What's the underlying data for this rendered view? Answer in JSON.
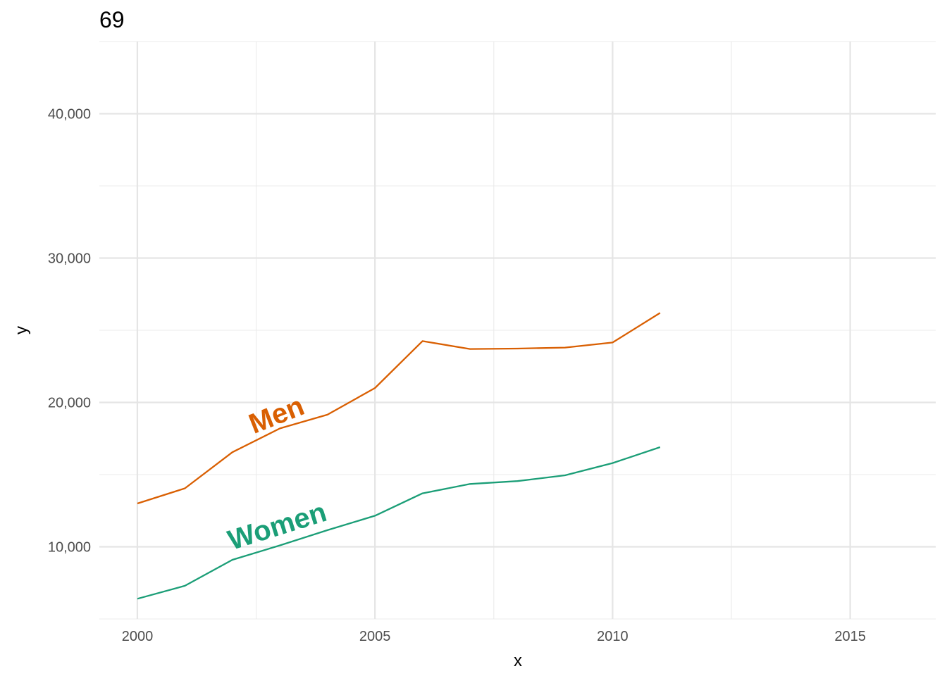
{
  "chart_data": {
    "type": "line",
    "title": "69",
    "xlabel": "x",
    "ylabel": "y",
    "xlim": [
      1999.2,
      2016.8
    ],
    "ylim": [
      5000,
      45000
    ],
    "x_ticks": [
      2000,
      2005,
      2010,
      2015
    ],
    "x_tick_labels": [
      "2000",
      "2005",
      "2010",
      "2015"
    ],
    "x_minor_ticks": [
      2002.5,
      2007.5,
      2012.5
    ],
    "y_ticks": [
      10000,
      20000,
      30000,
      40000
    ],
    "y_tick_labels": [
      "10,000",
      "20,000",
      "30,000",
      "40,000"
    ],
    "y_minor_ticks": [
      5000,
      15000,
      25000,
      35000,
      45000
    ],
    "grid": true,
    "legend": "none",
    "x": [
      2000,
      2001,
      2002,
      2003,
      2004,
      2005,
      2006,
      2007,
      2008,
      2009,
      2010,
      2011
    ],
    "series": [
      {
        "name": "Men",
        "color": "#D95F02",
        "values": [
          13000,
          14050,
          16550,
          18200,
          19150,
          21000,
          24250,
          23700,
          23730,
          23800,
          24150,
          26200
        ]
      },
      {
        "name": "Women",
        "color": "#1B9E77",
        "values": [
          6400,
          7300,
          9100,
          10100,
          11150,
          12150,
          13700,
          14350,
          14550,
          14950,
          15800,
          16900
        ]
      }
    ]
  }
}
